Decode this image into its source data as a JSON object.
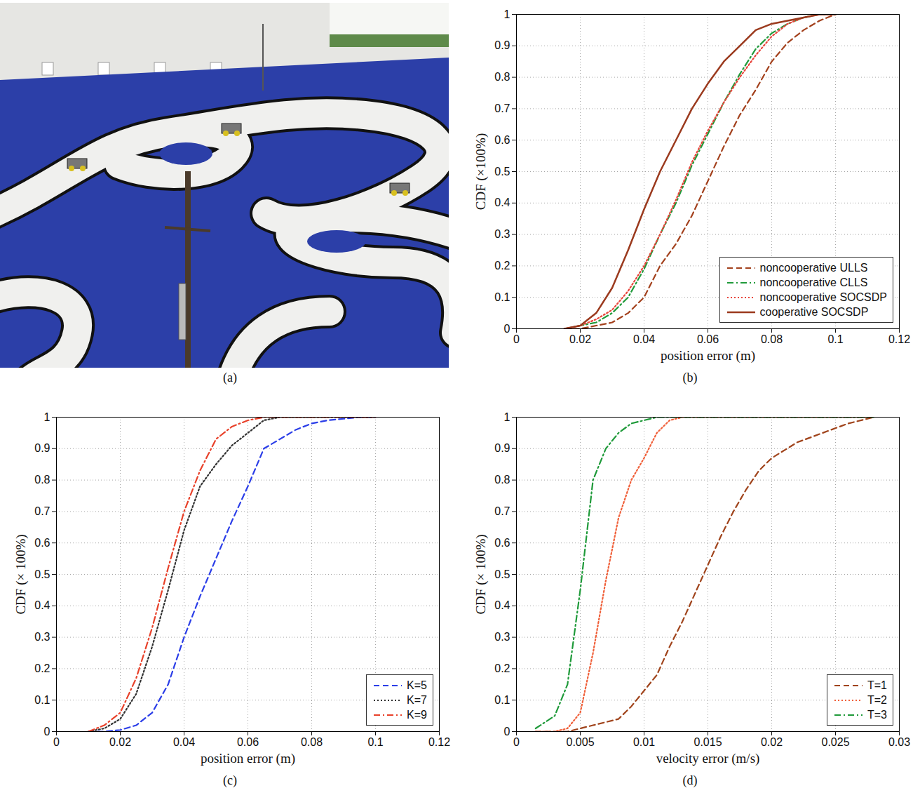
{
  "chart_data": [
    {
      "type": "photo",
      "caption": "(a)"
    },
    {
      "type": "line",
      "caption": "(b)",
      "x_label": "position error (m)",
      "y_label": "CDF (×100%)",
      "x": [
        0.015,
        0.02,
        0.025,
        0.03,
        0.035,
        0.04,
        0.045,
        0.05,
        0.055,
        0.06,
        0.065,
        0.07,
        0.075,
        0.08,
        0.085,
        0.09,
        0.095,
        0.1
      ],
      "series": [
        {
          "name": "noncooperative ULLS",
          "color": "#a3411d",
          "line_style": "dashed",
          "values": [
            0,
            0,
            0.01,
            0.02,
            0.05,
            0.1,
            0.2,
            0.27,
            0.36,
            0.47,
            0.58,
            0.68,
            0.76,
            0.85,
            0.91,
            0.95,
            0.98,
            1
          ]
        },
        {
          "name": "noncooperative CLLS",
          "color": "#1f9a3a",
          "line_style": "dashdot",
          "values": [
            0,
            0.01,
            0.02,
            0.05,
            0.1,
            0.19,
            0.3,
            0.4,
            0.52,
            0.62,
            0.72,
            0.81,
            0.89,
            0.94,
            0.97,
            0.99,
            1,
            1
          ]
        },
        {
          "name": "noncooperative SOCSDP",
          "color": "#e8453c",
          "line_style": "dotted",
          "values": [
            0,
            0.01,
            0.03,
            0.06,
            0.12,
            0.2,
            0.3,
            0.41,
            0.53,
            0.63,
            0.72,
            0.8,
            0.87,
            0.93,
            0.97,
            0.99,
            1,
            1
          ]
        },
        {
          "name": "cooperative SOCSDP",
          "color": "#9b3a1e",
          "line_style": "solid",
          "values": [
            0,
            0.01,
            0.05,
            0.13,
            0.25,
            0.38,
            0.5,
            0.6,
            0.7,
            0.78,
            0.85,
            0.9,
            0.95,
            0.97,
            0.98,
            0.99,
            1,
            1
          ]
        }
      ],
      "xlim": [
        0,
        0.12
      ],
      "xticks": [
        0,
        0.02,
        0.04,
        0.06,
        0.08,
        0.1,
        0.12
      ],
      "ylim": [
        0,
        1
      ],
      "yticks": [
        0,
        0.1,
        0.2,
        0.3,
        0.4,
        0.5,
        0.6,
        0.7,
        0.8,
        0.9,
        1
      ],
      "grid": true,
      "legend": "lower right"
    },
    {
      "type": "line",
      "caption": "(c)",
      "x_label": "position error (m)",
      "y_label": "CDF (× 100%)",
      "x": [
        0.01,
        0.015,
        0.02,
        0.025,
        0.03,
        0.035,
        0.04,
        0.045,
        0.05,
        0.055,
        0.06,
        0.065,
        0.07,
        0.075,
        0.08,
        0.085,
        0.09,
        0.095,
        0.1
      ],
      "series": [
        {
          "name": "K=5",
          "color": "#2b3ee8",
          "line_style": "dashed",
          "values": [
            0,
            0,
            0.005,
            0.02,
            0.06,
            0.15,
            0.3,
            0.43,
            0.55,
            0.67,
            0.78,
            0.9,
            0.93,
            0.96,
            0.98,
            0.99,
            0.995,
            1,
            1
          ]
        },
        {
          "name": "K=7",
          "color": "#333333",
          "line_style": "dotted",
          "values": [
            0,
            0.01,
            0.04,
            0.12,
            0.27,
            0.45,
            0.64,
            0.78,
            0.85,
            0.91,
            0.95,
            0.99,
            1,
            1,
            1,
            1,
            1,
            1,
            1
          ]
        },
        {
          "name": "K=9",
          "color": "#e8412a",
          "line_style": "dashdot",
          "values": [
            0,
            0.02,
            0.06,
            0.17,
            0.33,
            0.52,
            0.7,
            0.83,
            0.93,
            0.97,
            0.99,
            1,
            1,
            1,
            1,
            1,
            1,
            1,
            1
          ]
        }
      ],
      "xlim": [
        0,
        0.12
      ],
      "xticks": [
        0,
        0.02,
        0.04,
        0.06,
        0.08,
        0.1,
        0.12
      ],
      "ylim": [
        0,
        1
      ],
      "yticks": [
        0,
        0.1,
        0.2,
        0.3,
        0.4,
        0.5,
        0.6,
        0.7,
        0.8,
        0.9,
        1
      ],
      "grid": true,
      "legend": "lower right"
    },
    {
      "type": "line",
      "caption": "(d)",
      "x_label": "velocity error (m/s)",
      "y_label": "CDF (× 100%)",
      "x": [
        0.0015,
        0.003,
        0.004,
        0.005,
        0.006,
        0.007,
        0.008,
        0.009,
        0.01,
        0.011,
        0.012,
        0.013,
        0.014,
        0.015,
        0.016,
        0.017,
        0.018,
        0.019,
        0.02,
        0.022,
        0.024,
        0.026,
        0.028
      ],
      "series": [
        {
          "name": "T=1",
          "color": "#a0441c",
          "line_style": "dashed",
          "values": [
            0,
            0,
            0,
            0.01,
            0.02,
            0.03,
            0.04,
            0.08,
            0.13,
            0.18,
            0.27,
            0.35,
            0.44,
            0.53,
            0.62,
            0.7,
            0.77,
            0.83,
            0.87,
            0.92,
            0.95,
            0.98,
            1
          ]
        },
        {
          "name": "T=2",
          "color": "#f0603a",
          "line_style": "dotted",
          "values": [
            0,
            0,
            0.01,
            0.06,
            0.25,
            0.48,
            0.68,
            0.8,
            0.87,
            0.95,
            0.99,
            1,
            1,
            1,
            1,
            1,
            1,
            1,
            1,
            1,
            1,
            1,
            1
          ]
        },
        {
          "name": "T=3",
          "color": "#1f9a3a",
          "line_style": "dashdot",
          "values": [
            0.01,
            0.05,
            0.15,
            0.45,
            0.8,
            0.9,
            0.95,
            0.98,
            0.99,
            1,
            1,
            1,
            1,
            1,
            1,
            1,
            1,
            1,
            1,
            1,
            1,
            1,
            1
          ]
        }
      ],
      "xlim": [
        0,
        0.03
      ],
      "xticks": [
        0,
        0.005,
        0.01,
        0.015,
        0.02,
        0.025,
        0.03
      ],
      "ylim": [
        0,
        1
      ],
      "yticks": [
        0,
        0.1,
        0.2,
        0.3,
        0.4,
        0.5,
        0.6,
        0.7,
        0.8,
        0.9,
        1
      ],
      "grid": true,
      "legend": "lower right"
    }
  ]
}
